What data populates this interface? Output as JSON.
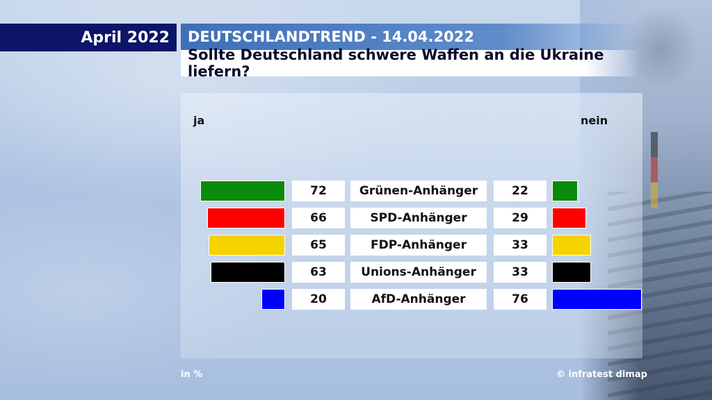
{
  "header": {
    "date_label": "April 2022",
    "series_title": "DEUTSCHLANDTREND - 14.04.2022",
    "question": "Sollte Deutschland schwere Waffen an die Ukraine liefern?"
  },
  "columns": {
    "yes": "ja",
    "no": "nein"
  },
  "footer": {
    "unit": "in %",
    "source": "© infratest dimap"
  },
  "chart_data": {
    "type": "bar",
    "title": "Sollte Deutschland schwere Waffen an die Ukraine liefern?",
    "categories": [
      "Grünen-Anhänger",
      "SPD-Anhänger",
      "FDP-Anhänger",
      "Unions-Anhänger",
      "AfD-Anhänger"
    ],
    "series": [
      {
        "name": "ja",
        "values": [
          72,
          66,
          65,
          63,
          20
        ]
      },
      {
        "name": "nein",
        "values": [
          22,
          29,
          33,
          33,
          76
        ]
      }
    ],
    "colors": [
      "#0a8a0a",
      "#ff0000",
      "#f5d200",
      "#000000",
      "#0000ff"
    ],
    "unit": "in %",
    "xlim": [
      0,
      100
    ]
  }
}
